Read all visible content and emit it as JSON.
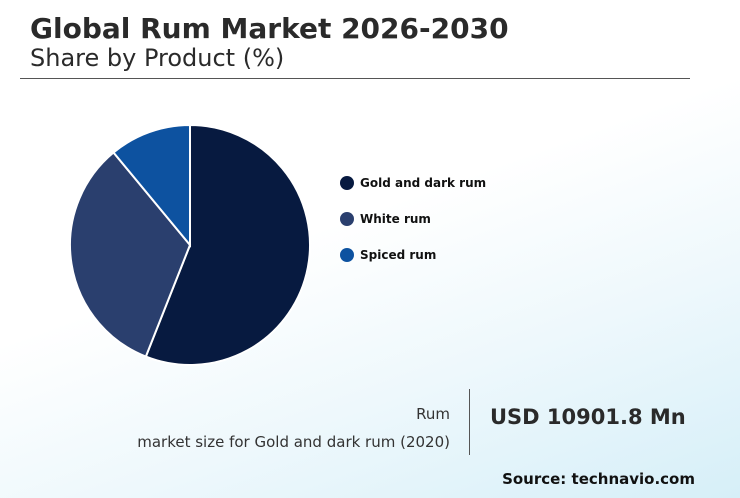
{
  "header": {
    "title": "Global Rum Market 2026-2030",
    "subtitle": "Share by Product (%)"
  },
  "chart_data": {
    "type": "pie",
    "categories": [
      "Gold and dark rum",
      "White rum",
      "Spiced rum"
    ],
    "values": [
      56,
      33,
      11
    ],
    "colors": [
      "#071a40",
      "#2a3f6e",
      "#0d52a0"
    ],
    "legend": "right"
  },
  "stat": {
    "line1": "Rum",
    "line2": "market size for Gold and dark rum (2020)",
    "value": "USD 10901.8 Mn"
  },
  "source": "Source: technavio.com"
}
